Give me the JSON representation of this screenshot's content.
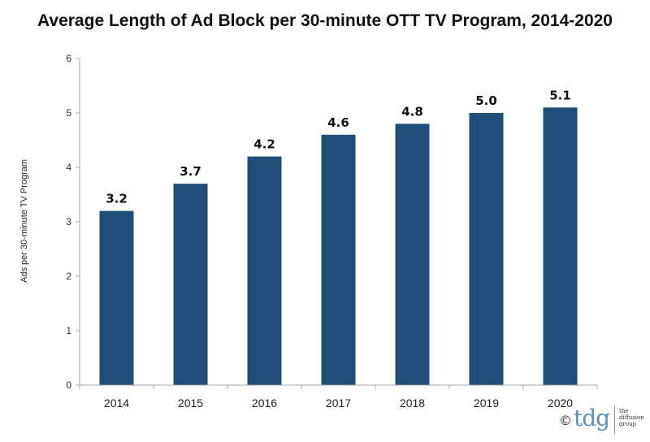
{
  "chart_data": {
    "type": "bar",
    "title": "Average Length of Ad Block per 30-minute OTT TV Program, 2014-2020",
    "ylabel": "Ads per 30-minute TV Program",
    "xlabel": "",
    "categories": [
      "2014",
      "2015",
      "2016",
      "2017",
      "2018",
      "2019",
      "2020"
    ],
    "values": [
      3.2,
      3.7,
      4.2,
      4.6,
      4.8,
      5.0,
      5.1
    ],
    "value_labels": [
      "3.2",
      "3.7",
      "4.2",
      "4.6",
      "4.8",
      "5.0",
      "5.1"
    ],
    "ylim": [
      0,
      6
    ],
    "yticks": [
      0,
      1,
      2,
      3,
      4,
      5,
      6
    ],
    "bar_color": "#1f4e79",
    "grid": false,
    "legend": "none"
  },
  "footer": {
    "copyright_symbol": "©",
    "brand": "tdg",
    "brand_small_line1": "the",
    "brand_small_line2": "diffusion",
    "brand_small_line3": "group",
    "brand_color": "#5d8fb9"
  }
}
